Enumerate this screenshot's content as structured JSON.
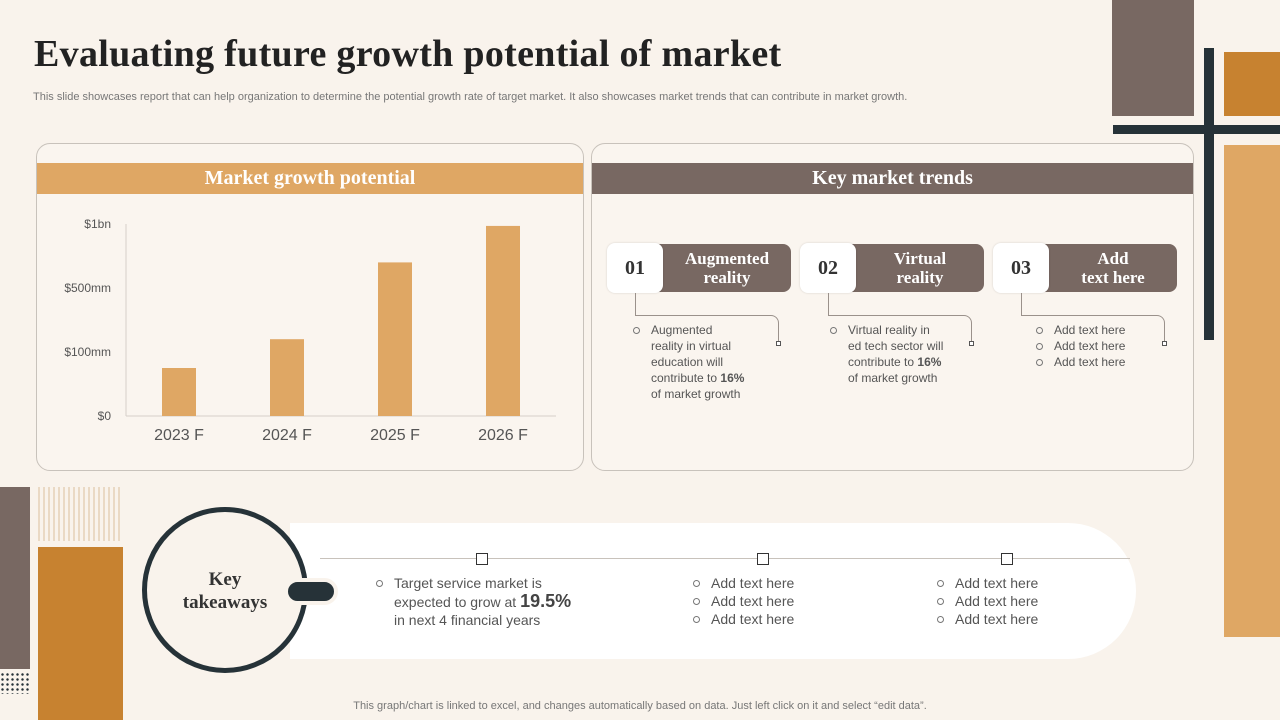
{
  "header": {
    "title": "Evaluating future growth potential of market",
    "subtitle": "This slide showcases report that can help organization to determine the potential growth rate of target market. It also showcases market trends that can contribute in market growth."
  },
  "growth_panel": {
    "heading": "Market growth potential"
  },
  "trends_panel": {
    "heading": "Key market trends",
    "items": [
      {
        "number": "01",
        "label_line1": "Augmented",
        "label_line2": "reality",
        "text_lines": [
          "Augmented",
          "reality in virtual",
          "education will",
          "contribute to"
        ],
        "highlight": "16%",
        "tail": "of market growth"
      },
      {
        "number": "02",
        "label_line1": "Virtual",
        "label_line2": "reality",
        "text_lines": [
          "Virtual reality in",
          "ed tech sector will",
          "contribute to"
        ],
        "highlight": "16%",
        "tail": "of market growth"
      },
      {
        "number": "03",
        "label_line1": "Add",
        "label_line2": "text here",
        "bullets": [
          "Add text here",
          "Add text here",
          "Add text here"
        ]
      }
    ]
  },
  "takeaways": {
    "label_line1": "Key",
    "label_line2": "takeaways",
    "main_prefix": "Target service market is",
    "main_mid": "expected to grow at",
    "main_value": "19.5%",
    "main_suffix": "in next 4 financial years",
    "col2": [
      "Add text here",
      "Add text here",
      "Add text here"
    ],
    "col3": [
      "Add text here",
      "Add text here",
      "Add text here"
    ]
  },
  "footnote": "This graph/chart is linked to excel,  and changes automatically based on data. Just left click on it and select “edit data”.",
  "chart_data": {
    "type": "bar",
    "title": "Market growth potential",
    "categories": [
      "2023 F",
      "2024 F",
      "2025 F",
      "2026 F"
    ],
    "values": [
      0.25,
      0.4,
      0.8,
      0.99
    ],
    "value_unit": "fraction of $1bn axis",
    "y_ticks": [
      "$0",
      "$100mm",
      "$500mm",
      "$1bn"
    ],
    "ylim": [
      0,
      1
    ],
    "grid": false,
    "bar_color": "#dfa764"
  },
  "colors": {
    "sand": "#dfa764",
    "brown": "#786862",
    "orange": "#c78230",
    "dark": "#263238"
  }
}
